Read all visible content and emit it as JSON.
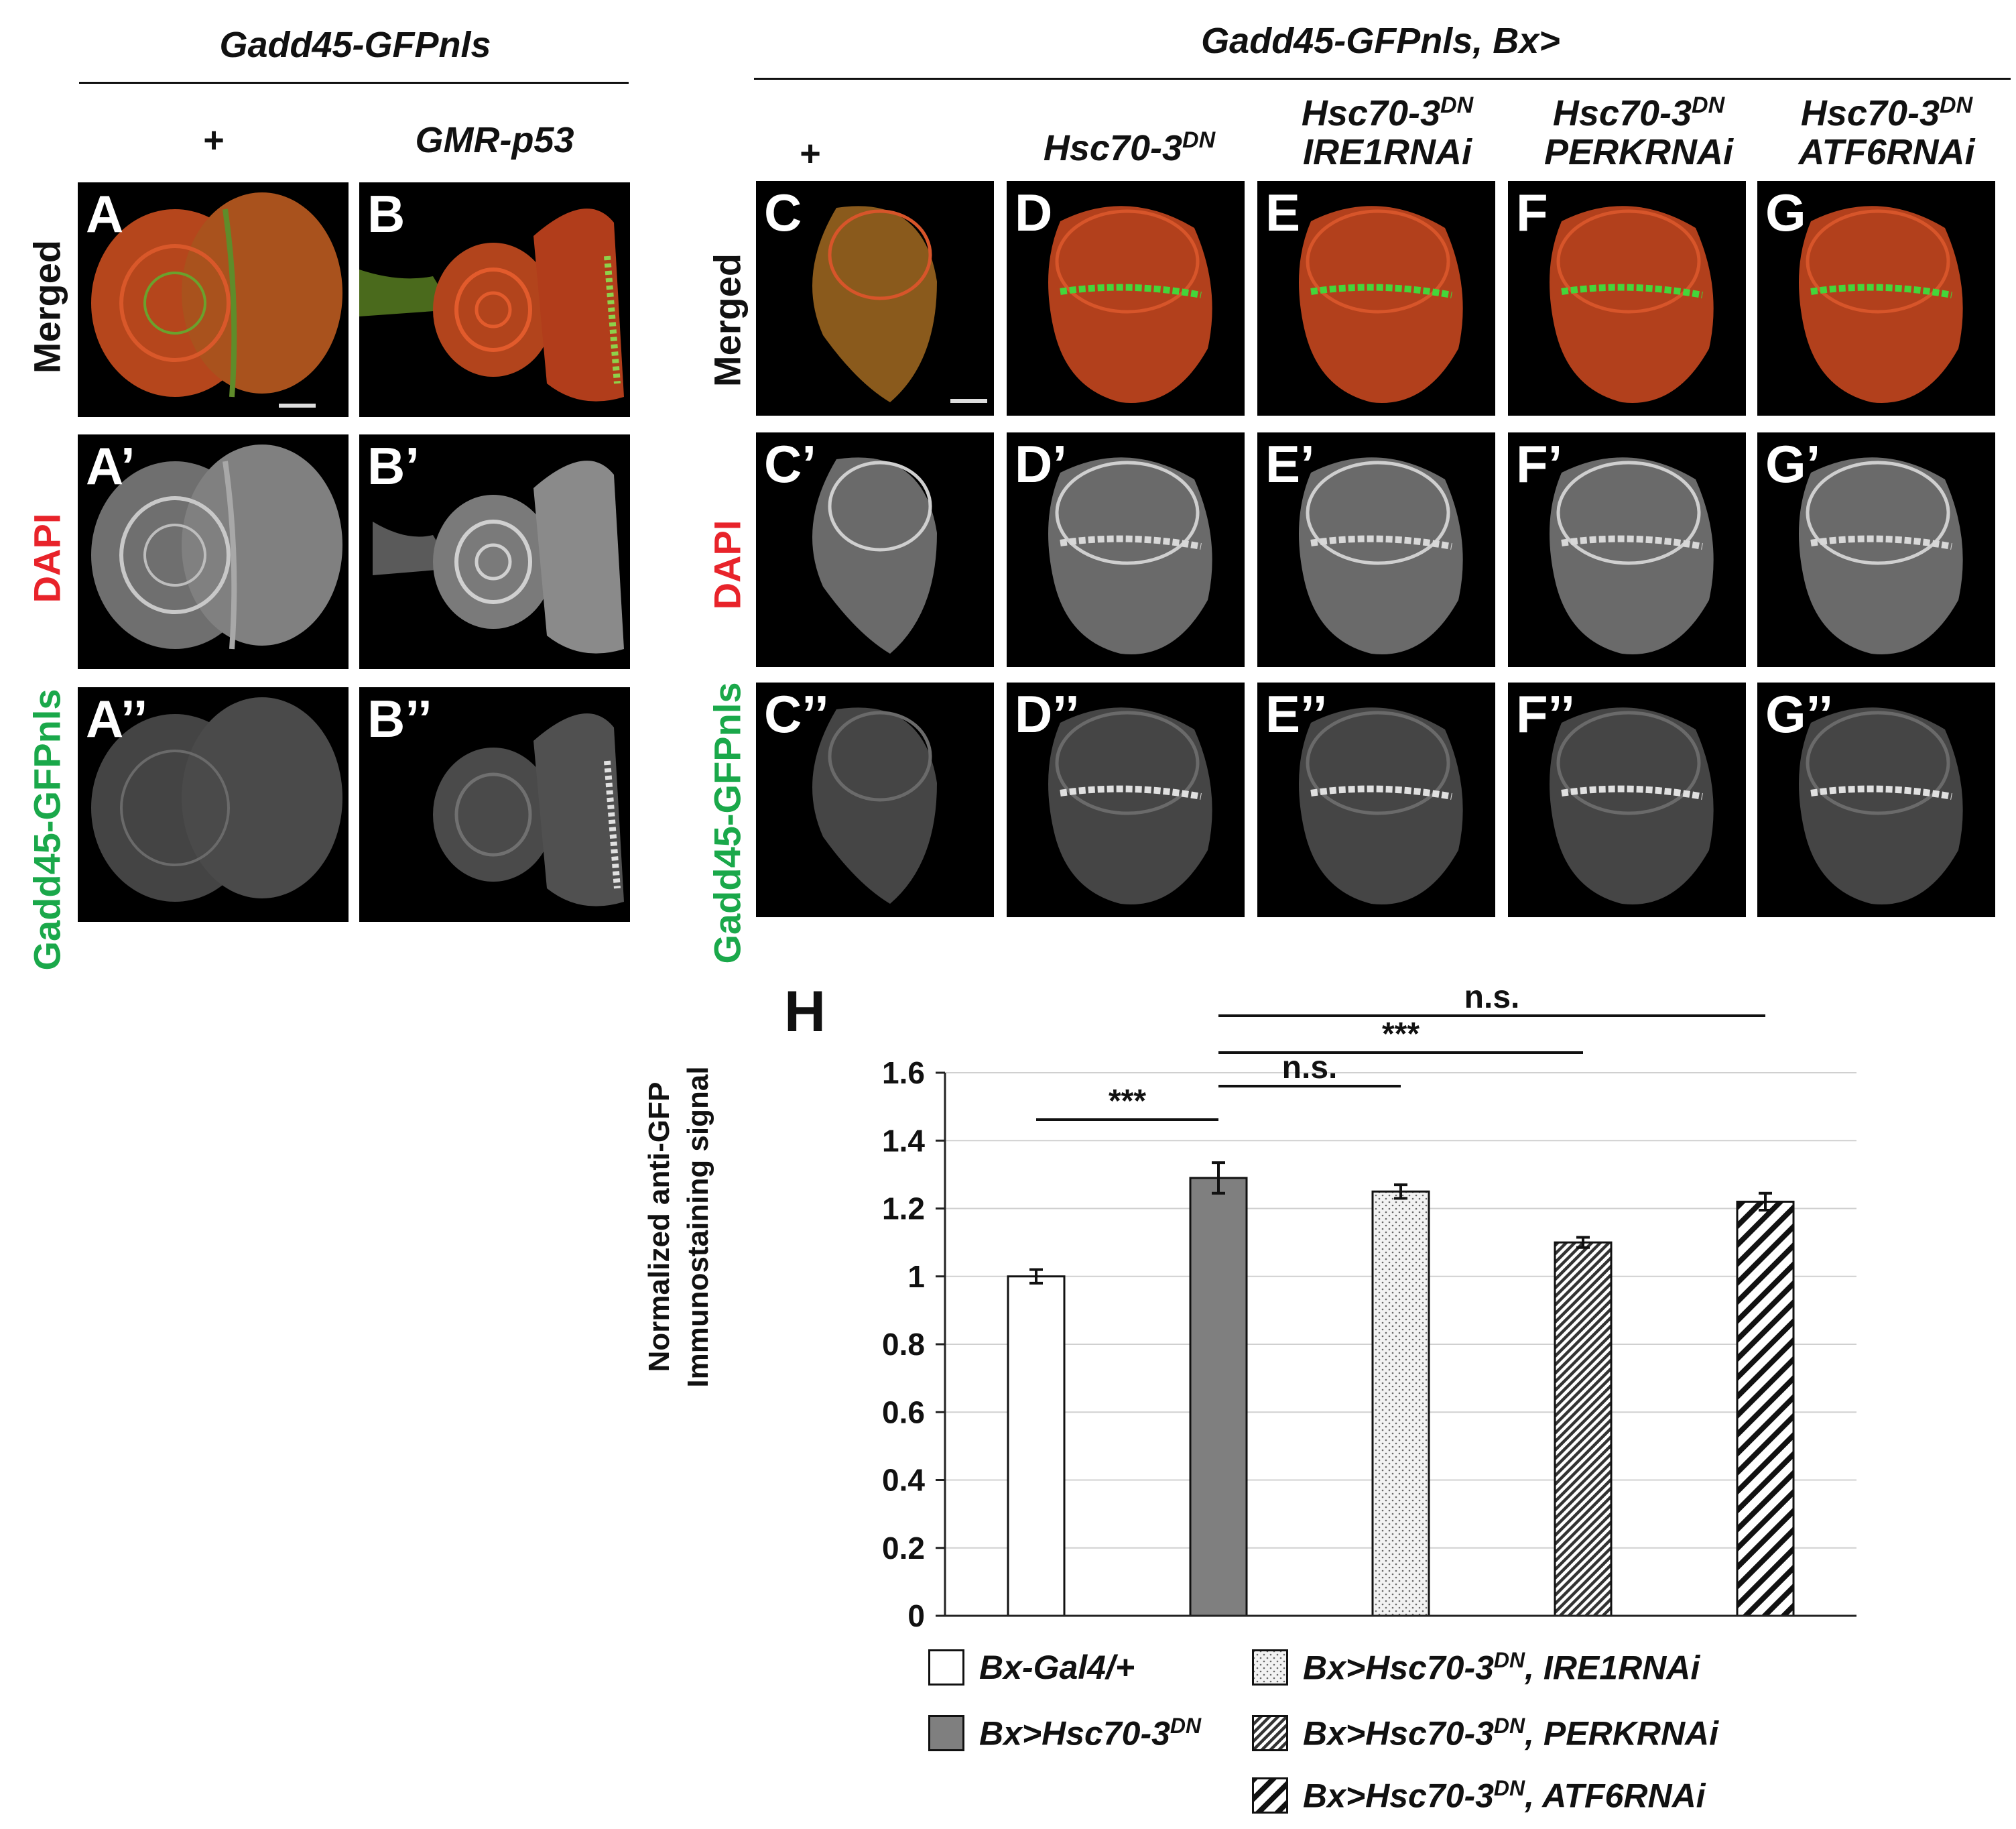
{
  "left_group": {
    "title": "Gadd45-GFPnls",
    "columns": [
      "+",
      "GMR-p53"
    ]
  },
  "right_group": {
    "title": "Gadd45-GFPnls, Bx>",
    "columns": [
      {
        "main": "+",
        "sup": "",
        "line2": ""
      },
      {
        "main": "Hsc70-3",
        "sup": "DN",
        "line2": ""
      },
      {
        "main": "Hsc70-3",
        "sup": "DN",
        "line2": "IRE1RNAi"
      },
      {
        "main": "Hsc70-3",
        "sup": "DN",
        "line2": "PERKRNAi"
      },
      {
        "main": "Hsc70-3",
        "sup": "DN",
        "line2": "ATF6RNAi"
      }
    ]
  },
  "row_labels": {
    "merged": "Merged",
    "dapi": "DAPI",
    "gfp": "Gadd45-GFPnls"
  },
  "panel_labels": {
    "row1": [
      "A",
      "B",
      "C",
      "D",
      "E",
      "F",
      "G"
    ],
    "row2": [
      "A’",
      "B’",
      "C’",
      "D’",
      "E’",
      "F’",
      "G’"
    ],
    "row3": [
      "A’’",
      "B’’",
      "C’’",
      "D’’",
      "E’’",
      "F’’",
      "G’’"
    ]
  },
  "colors": {
    "dapi_red": "#e8232a",
    "gfp_green": "#1aa84a",
    "tissue_red": "#c8391e",
    "tissue_green": "#3fd63a"
  },
  "chart_data": {
    "type": "bar",
    "panel_label": "H",
    "ylabel_line1": "Normalized anti-GFP",
    "ylabel_line2": "Immunostaining  signal",
    "ylim": [
      0,
      1.6
    ],
    "yticks": [
      "0",
      "0.2",
      "0.4",
      "0.6",
      "0.8",
      "1",
      "1.2",
      "1.4",
      "1.6"
    ],
    "ytick_values": [
      0,
      0.2,
      0.4,
      0.6,
      0.8,
      1.0,
      1.2,
      1.4,
      1.6
    ],
    "grid": true,
    "categories": [
      "Bx-Gal4/+",
      "Bx>Hsc70-3DN",
      "Bx>Hsc70-3DN, IRE1RNAi",
      "Bx>Hsc70-3DN, PERKRNAi",
      "Bx>Hsc70-3DN, ATF6RNAi"
    ],
    "values": [
      1.0,
      1.29,
      1.25,
      1.1,
      1.22
    ],
    "errors": [
      0.02,
      0.045,
      0.02,
      0.015,
      0.025
    ],
    "fills": [
      "white",
      "gray",
      "dots",
      "hatch-dense",
      "hatch-wide"
    ],
    "significance": [
      {
        "from": 0,
        "to": 1,
        "label": "***"
      },
      {
        "from": 1,
        "to": 2,
        "label": "n.s."
      },
      {
        "from": 1,
        "to": 3,
        "label": "***"
      },
      {
        "from": 1,
        "to": 4,
        "label": "n.s."
      }
    ],
    "legend": [
      {
        "prefix": "Bx-Gal4/+",
        "sup": "",
        "suffix": ""
      },
      {
        "prefix": "Bx>Hsc70-3",
        "sup": "DN",
        "suffix": ""
      },
      {
        "prefix": "Bx>Hsc70-3",
        "sup": "DN",
        "suffix": ", IRE1RNAi"
      },
      {
        "prefix": "Bx>Hsc70-3",
        "sup": "DN",
        "suffix": ", PERKRNAi"
      },
      {
        "prefix": "Bx>Hsc70-3",
        "sup": "DN",
        "suffix": ", ATF6RNAi"
      }
    ]
  }
}
